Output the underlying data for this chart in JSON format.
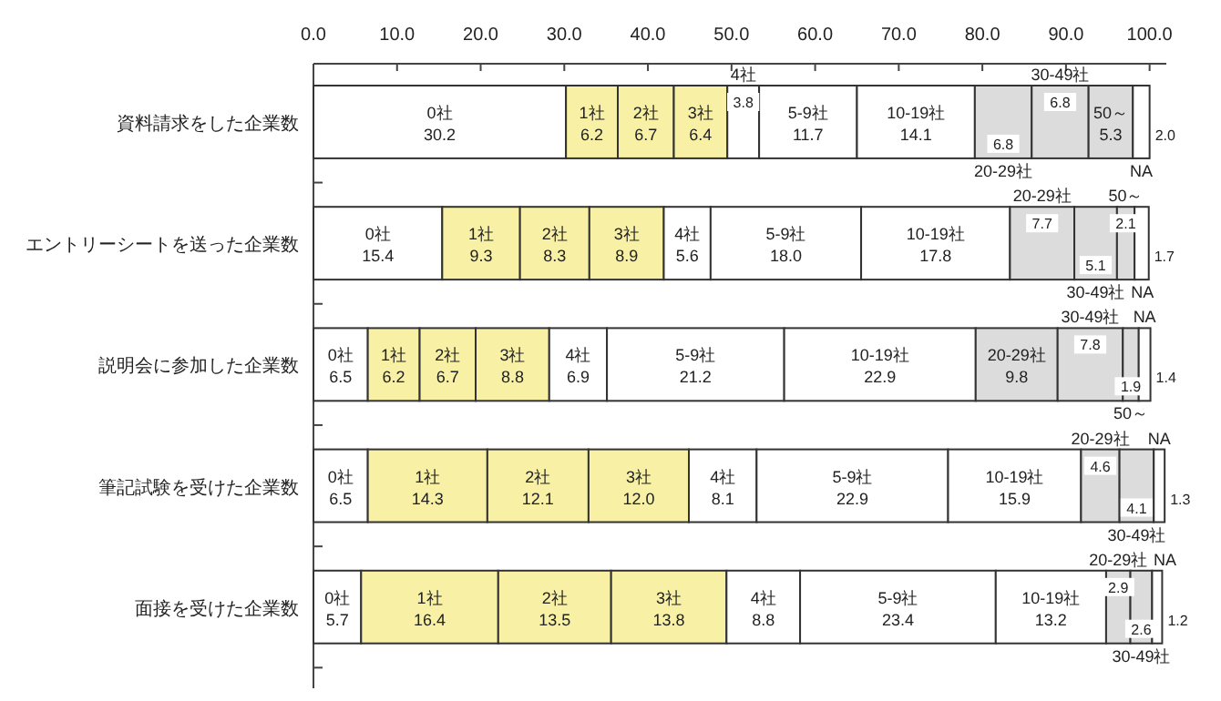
{
  "chart_data": {
    "type": "bar",
    "orientation": "horizontal",
    "stacked": true,
    "legend": false,
    "grid": false,
    "categories": [
      "資料請求をした企業数",
      "エントリーシートを送った企業数",
      "説明会に参加した企業数",
      "筆記試験を受けた企業数",
      "面接を受けた企業数"
    ],
    "xlim": [
      0,
      102
    ],
    "xticks": [
      {
        "value": 0,
        "label": "0.0"
      },
      {
        "value": 10,
        "label": "10.0"
      },
      {
        "value": 20,
        "label": "20.0"
      },
      {
        "value": 30,
        "label": "30.0"
      },
      {
        "value": 40,
        "label": "40.0"
      },
      {
        "value": 50,
        "label": "50.0"
      },
      {
        "value": 60,
        "label": "60.0"
      },
      {
        "value": 70,
        "label": "70.0"
      },
      {
        "value": 80,
        "label": "80.0"
      },
      {
        "value": 90,
        "label": "90.0"
      },
      {
        "value": 100,
        "label": "100.0"
      }
    ],
    "series": [
      {
        "name": "0社",
        "color": "#ffffff",
        "values": [
          30.2,
          15.4,
          6.5,
          6.5,
          5.7
        ],
        "value_labels": [
          "30.2",
          "15.4",
          "6.5",
          "6.5",
          "5.7"
        ]
      },
      {
        "name": "1社",
        "color": "#f7f0a5",
        "values": [
          6.2,
          9.3,
          6.2,
          14.3,
          16.4
        ],
        "value_labels": [
          "6.2",
          "9.3",
          "6.2",
          "14.3",
          "16.4"
        ]
      },
      {
        "name": "2社",
        "color": "#f7f0a5",
        "values": [
          6.7,
          8.3,
          6.7,
          12.1,
          13.5
        ],
        "value_labels": [
          "6.7",
          "8.3",
          "6.7",
          "12.1",
          "13.5"
        ]
      },
      {
        "name": "3社",
        "color": "#f7f0a5",
        "values": [
          6.4,
          8.9,
          8.8,
          12.0,
          13.8
        ],
        "value_labels": [
          "6.4",
          "8.9",
          "8.8",
          "12.0",
          "13.8"
        ]
      },
      {
        "name": "4社",
        "color": "#ffffff",
        "values": [
          3.8,
          5.6,
          6.9,
          8.1,
          8.8
        ],
        "value_labels": [
          "3.8",
          "5.6",
          "6.9",
          "8.1",
          "8.8"
        ]
      },
      {
        "name": "5-9社",
        "color": "#ffffff",
        "values": [
          11.7,
          18.0,
          21.2,
          22.9,
          23.4
        ],
        "value_labels": [
          "11.7",
          "18.0",
          "21.2",
          "22.9",
          "23.4"
        ]
      },
      {
        "name": "10-19社",
        "color": "#ffffff",
        "values": [
          14.1,
          17.8,
          22.9,
          15.9,
          13.2
        ],
        "value_labels": [
          "14.1",
          "17.8",
          "22.9",
          "15.9",
          "13.2"
        ]
      },
      {
        "name": "20-29社",
        "color": "#dcdcdc",
        "values": [
          6.8,
          7.7,
          9.8,
          4.6,
          2.9
        ],
        "value_labels": [
          "6.8",
          "7.7",
          "9.8",
          "4.6",
          "2.9"
        ]
      },
      {
        "name": "30-49社",
        "color": "#dcdcdc",
        "values": [
          6.8,
          5.1,
          7.8,
          4.1,
          2.6
        ],
        "value_labels": [
          "6.8",
          "5.1",
          "7.8",
          "4.1",
          "2.6"
        ]
      },
      {
        "name": "50～",
        "color": "#dcdcdc",
        "values": [
          5.3,
          2.1,
          1.9,
          null,
          null
        ],
        "value_labels": [
          "5.3",
          "2.1",
          "1.9",
          null,
          null
        ]
      },
      {
        "name": "NA",
        "color": "#ffffff",
        "values": [
          2.0,
          1.7,
          1.4,
          1.3,
          1.2
        ],
        "value_labels": [
          "2.0",
          "1.7",
          "1.4",
          "1.3",
          "1.2"
        ]
      }
    ]
  }
}
